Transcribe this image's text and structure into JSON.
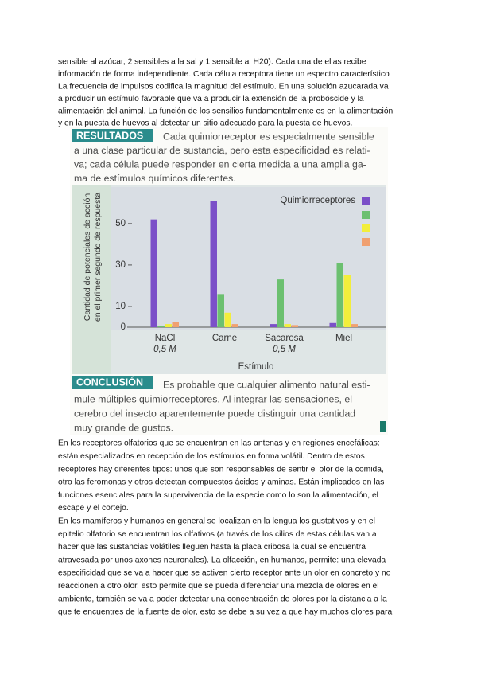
{
  "top_text": {
    "lines": [
      "sensible al azúcar, 2 sensibles a la sal y 1 sensible al H20). Cada una de ellas recibe",
      "información de forma independiente. Cada célula receptora tiene un espectro característico",
      "La frecuencia de impulsos codifica la magnitud del estímulo. En una solución azucarada va",
      "a producir un estímulo favorable que va a producir la extensión de la probóscide y la",
      "alimentación del animal. La función de los sensilios fundamentalmente es en la alimentación",
      "y en la puesta de huevos al detectar un sitio adecuado para la puesta de huevos."
    ]
  },
  "figure": {
    "results_heading": "RESULTADOS",
    "results_lines": [
      "Cada quimiorreceptor es especialmente sensible",
      "a una clase particular de sustancia, pero esta especificidad es relati-",
      "va; cada célula puede responder en cierta medida a una amplia ga-",
      "ma de estímulos químicos diferentes."
    ],
    "conclusion_heading": "CONCLUSIÓN",
    "conclusion_lines": [
      "Es probable que cualquier alimento natural esti-",
      "mule múltiples quimiorreceptores. Al integrar las sensaciones, el",
      "cerebro del insecto aparentemente puede distinguir una cantidad",
      "muy grande de gustos."
    ]
  },
  "chart_data": {
    "type": "bar",
    "categories": [
      "NaCl",
      "Carne",
      "Sacarosa",
      "Miel"
    ],
    "category_sublabels": [
      "0,5 M",
      null,
      "0,5 M",
      null
    ],
    "x_label": "Estímulo",
    "y_label": [
      "Cantidad de potenciales de acción",
      "en el primer segundo de respuesta"
    ],
    "series": [
      {
        "name": "Quimiorreceptores",
        "color": "#7b4fc8",
        "values": [
          52,
          61,
          1.5,
          2
        ]
      },
      {
        "color": "#6cc070",
        "values": [
          0.5,
          16,
          23,
          31
        ]
      },
      {
        "color": "#f2ee3c",
        "values": [
          1.5,
          7,
          1.5,
          25
        ]
      },
      {
        "color": "#f0a070",
        "values": [
          2.5,
          1.5,
          1,
          1.5
        ]
      }
    ],
    "ylim": [
      0,
      68
    ],
    "yticks": [
      0,
      10,
      30,
      50
    ]
  },
  "bottom_text": {
    "lines": [
      "En los receptores olfatorios que se encuentran en las antenas y en regiones encefálicas:",
      "están especializados en recepción de los estímulos en forma volátil. Dentro de estos",
      "receptores hay diferentes tipos: unos que son responsables de sentir el olor de la comida,",
      "otro las feromonas y otros detectan compuestos ácidos y aminas. Están implicados en las",
      "funciones esenciales para la supervivencia de la especie como lo son la alimentación, el",
      "escape y el cortejo.",
      "En los mamíferos y humanos en general se localizan en la lengua los gustativos y en el",
      "epitelio olfatorio se encuentran los olfativos (a través de los cilios de estas células van a",
      "hacer que las sustancias volátiles lleguen hasta la placa cribosa la cual se encuentra",
      "atravesada por unos axones neuronales). La olfacción, en humanos, permite: una elevada",
      "especificidad que se va a hacer que se activen cierto receptor ante un olor en concreto y no",
      "reaccionen a otro olor, esto permite que se pueda diferenciar una mezcla de olores en el",
      "ambiente, también se va a poder detectar una concentración de olores por la distancia a la",
      "que te encuentres de la fuente de olor, esto se debe a su vez a que hay muchos olores para"
    ]
  }
}
